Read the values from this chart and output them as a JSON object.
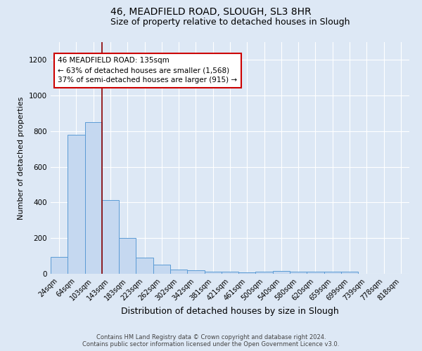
{
  "title1": "46, MEADFIELD ROAD, SLOUGH, SL3 8HR",
  "title2": "Size of property relative to detached houses in Slough",
  "xlabel": "Distribution of detached houses by size in Slough",
  "ylabel": "Number of detached properties",
  "categories": [
    "24sqm",
    "64sqm",
    "103sqm",
    "143sqm",
    "183sqm",
    "223sqm",
    "262sqm",
    "302sqm",
    "342sqm",
    "381sqm",
    "421sqm",
    "461sqm",
    "500sqm",
    "540sqm",
    "580sqm",
    "620sqm",
    "659sqm",
    "699sqm",
    "739sqm",
    "778sqm",
    "818sqm"
  ],
  "values": [
    95,
    780,
    850,
    415,
    200,
    90,
    52,
    22,
    18,
    10,
    10,
    8,
    10,
    15,
    10,
    12,
    10,
    10,
    0,
    0,
    0
  ],
  "bar_color": "#c5d8f0",
  "bar_edge_color": "#5b9bd5",
  "vline_x_index": 2.5,
  "vline_color": "#8b0000",
  "annotation_title": "46 MEADFIELD ROAD: 135sqm",
  "annotation_line2": "← 63% of detached houses are smaller (1,568)",
  "annotation_line3": "37% of semi-detached houses are larger (915) →",
  "annotation_box_color": "#ffffff",
  "annotation_box_edge": "#cc0000",
  "ylim": [
    0,
    1300
  ],
  "yticks": [
    0,
    200,
    400,
    600,
    800,
    1000,
    1200
  ],
  "background_color": "#dde8f5",
  "footer1": "Contains HM Land Registry data © Crown copyright and database right 2024.",
  "footer2": "Contains public sector information licensed under the Open Government Licence v3.0.",
  "title1_fontsize": 10,
  "title2_fontsize": 9,
  "xlabel_fontsize": 9,
  "ylabel_fontsize": 8,
  "tick_fontsize": 7,
  "footer_fontsize": 6,
  "annotation_fontsize": 7.5
}
